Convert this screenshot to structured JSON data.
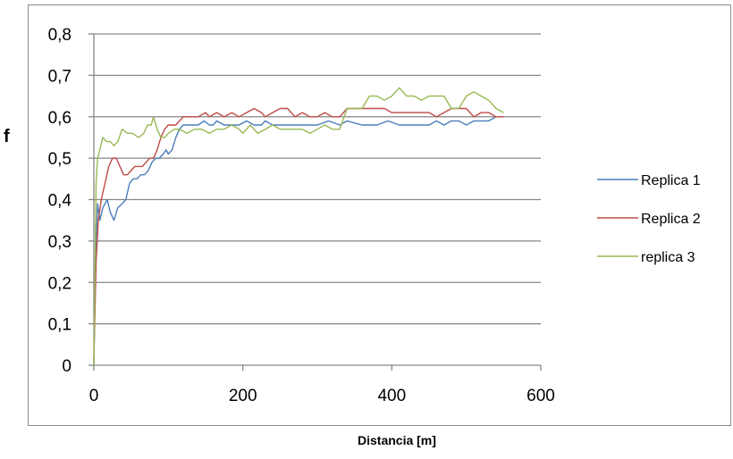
{
  "chart_data": {
    "type": "line",
    "title": "",
    "xlabel": "Distancia [m]",
    "ylabel": "f",
    "xlim": [
      0,
      600
    ],
    "ylim": [
      0,
      0.8
    ],
    "xticks": [
      0,
      200,
      400,
      600
    ],
    "xtick_labels": [
      "0",
      "200",
      "400",
      "600"
    ],
    "yticks": [
      0,
      0.1,
      0.2,
      0.3,
      0.4,
      0.5,
      0.6,
      0.7,
      0.8
    ],
    "ytick_labels": [
      "0",
      "0,1",
      "0,2",
      "0,3",
      "0,4",
      "0,5",
      "0,6",
      "0,7",
      "0,8"
    ],
    "grid": "horizontal",
    "legend_position": "right",
    "series": [
      {
        "name": "Replica 1",
        "color": "#4a7ebb",
        "points": [
          [
            0,
            0
          ],
          [
            2,
            0.25
          ],
          [
            5,
            0.39
          ],
          [
            8,
            0.35
          ],
          [
            12,
            0.38
          ],
          [
            18,
            0.4
          ],
          [
            22,
            0.37
          ],
          [
            27,
            0.35
          ],
          [
            32,
            0.38
          ],
          [
            38,
            0.39
          ],
          [
            43,
            0.4
          ],
          [
            48,
            0.44
          ],
          [
            53,
            0.45
          ],
          [
            58,
            0.45
          ],
          [
            63,
            0.46
          ],
          [
            68,
            0.46
          ],
          [
            73,
            0.47
          ],
          [
            78,
            0.49
          ],
          [
            83,
            0.5
          ],
          [
            88,
            0.5
          ],
          [
            93,
            0.51
          ],
          [
            97,
            0.52
          ],
          [
            100,
            0.51
          ],
          [
            105,
            0.52
          ],
          [
            110,
            0.55
          ],
          [
            115,
            0.57
          ],
          [
            120,
            0.58
          ],
          [
            130,
            0.58
          ],
          [
            140,
            0.58
          ],
          [
            148,
            0.59
          ],
          [
            155,
            0.58
          ],
          [
            160,
            0.58
          ],
          [
            165,
            0.59
          ],
          [
            175,
            0.58
          ],
          [
            185,
            0.58
          ],
          [
            195,
            0.58
          ],
          [
            205,
            0.59
          ],
          [
            215,
            0.58
          ],
          [
            225,
            0.58
          ],
          [
            230,
            0.59
          ],
          [
            240,
            0.58
          ],
          [
            260,
            0.58
          ],
          [
            280,
            0.58
          ],
          [
            300,
            0.58
          ],
          [
            315,
            0.59
          ],
          [
            330,
            0.58
          ],
          [
            340,
            0.59
          ],
          [
            360,
            0.58
          ],
          [
            380,
            0.58
          ],
          [
            395,
            0.59
          ],
          [
            410,
            0.58
          ],
          [
            430,
            0.58
          ],
          [
            450,
            0.58
          ],
          [
            460,
            0.59
          ],
          [
            470,
            0.58
          ],
          [
            480,
            0.59
          ],
          [
            490,
            0.59
          ],
          [
            500,
            0.58
          ],
          [
            510,
            0.59
          ],
          [
            520,
            0.59
          ],
          [
            530,
            0.59
          ],
          [
            540,
            0.6
          ],
          [
            550,
            0.6
          ]
        ]
      },
      {
        "name": "Replica 2",
        "color": "#be4b48",
        "points": [
          [
            0,
            0.01
          ],
          [
            3,
            0.25
          ],
          [
            6,
            0.35
          ],
          [
            10,
            0.4
          ],
          [
            15,
            0.44
          ],
          [
            20,
            0.48
          ],
          [
            25,
            0.5
          ],
          [
            30,
            0.5
          ],
          [
            35,
            0.48
          ],
          [
            40,
            0.46
          ],
          [
            45,
            0.46
          ],
          [
            50,
            0.47
          ],
          [
            55,
            0.48
          ],
          [
            60,
            0.48
          ],
          [
            65,
            0.48
          ],
          [
            70,
            0.49
          ],
          [
            75,
            0.5
          ],
          [
            80,
            0.5
          ],
          [
            85,
            0.52
          ],
          [
            90,
            0.55
          ],
          [
            95,
            0.57
          ],
          [
            100,
            0.58
          ],
          [
            110,
            0.58
          ],
          [
            115,
            0.59
          ],
          [
            120,
            0.6
          ],
          [
            130,
            0.6
          ],
          [
            140,
            0.6
          ],
          [
            150,
            0.61
          ],
          [
            155,
            0.6
          ],
          [
            165,
            0.61
          ],
          [
            175,
            0.6
          ],
          [
            185,
            0.61
          ],
          [
            195,
            0.6
          ],
          [
            205,
            0.61
          ],
          [
            215,
            0.62
          ],
          [
            225,
            0.61
          ],
          [
            230,
            0.6
          ],
          [
            240,
            0.61
          ],
          [
            250,
            0.62
          ],
          [
            260,
            0.62
          ],
          [
            270,
            0.6
          ],
          [
            280,
            0.61
          ],
          [
            290,
            0.6
          ],
          [
            300,
            0.6
          ],
          [
            310,
            0.61
          ],
          [
            320,
            0.6
          ],
          [
            330,
            0.6
          ],
          [
            340,
            0.62
          ],
          [
            350,
            0.62
          ],
          [
            360,
            0.62
          ],
          [
            370,
            0.62
          ],
          [
            380,
            0.62
          ],
          [
            390,
            0.62
          ],
          [
            400,
            0.61
          ],
          [
            410,
            0.61
          ],
          [
            420,
            0.61
          ],
          [
            430,
            0.61
          ],
          [
            440,
            0.61
          ],
          [
            450,
            0.61
          ],
          [
            460,
            0.6
          ],
          [
            470,
            0.61
          ],
          [
            480,
            0.62
          ],
          [
            490,
            0.62
          ],
          [
            500,
            0.62
          ],
          [
            510,
            0.6
          ],
          [
            520,
            0.61
          ],
          [
            530,
            0.61
          ],
          [
            540,
            0.6
          ],
          [
            550,
            0.6
          ]
        ]
      },
      {
        "name": "replica 3",
        "color": "#98b954",
        "points": [
          [
            0,
            0.0
          ],
          [
            3,
            0.44
          ],
          [
            5,
            0.5
          ],
          [
            8,
            0.52
          ],
          [
            12,
            0.55
          ],
          [
            17,
            0.54
          ],
          [
            22,
            0.54
          ],
          [
            27,
            0.53
          ],
          [
            32,
            0.54
          ],
          [
            38,
            0.57
          ],
          [
            45,
            0.56
          ],
          [
            52,
            0.56
          ],
          [
            60,
            0.55
          ],
          [
            67,
            0.56
          ],
          [
            72,
            0.58
          ],
          [
            77,
            0.58
          ],
          [
            80,
            0.6
          ],
          [
            85,
            0.57
          ],
          [
            90,
            0.55
          ],
          [
            95,
            0.55
          ],
          [
            100,
            0.56
          ],
          [
            108,
            0.57
          ],
          [
            115,
            0.57
          ],
          [
            125,
            0.56
          ],
          [
            135,
            0.57
          ],
          [
            145,
            0.57
          ],
          [
            155,
            0.56
          ],
          [
            165,
            0.57
          ],
          [
            175,
            0.57
          ],
          [
            185,
            0.58
          ],
          [
            195,
            0.57
          ],
          [
            200,
            0.56
          ],
          [
            210,
            0.58
          ],
          [
            220,
            0.56
          ],
          [
            230,
            0.57
          ],
          [
            240,
            0.58
          ],
          [
            250,
            0.57
          ],
          [
            260,
            0.57
          ],
          [
            270,
            0.57
          ],
          [
            280,
            0.57
          ],
          [
            290,
            0.56
          ],
          [
            300,
            0.57
          ],
          [
            310,
            0.58
          ],
          [
            320,
            0.57
          ],
          [
            330,
            0.57
          ],
          [
            340,
            0.62
          ],
          [
            350,
            0.62
          ],
          [
            360,
            0.62
          ],
          [
            370,
            0.65
          ],
          [
            380,
            0.65
          ],
          [
            390,
            0.64
          ],
          [
            400,
            0.65
          ],
          [
            410,
            0.67
          ],
          [
            420,
            0.65
          ],
          [
            430,
            0.65
          ],
          [
            440,
            0.64
          ],
          [
            450,
            0.65
          ],
          [
            460,
            0.65
          ],
          [
            470,
            0.65
          ],
          [
            480,
            0.62
          ],
          [
            490,
            0.62
          ],
          [
            500,
            0.65
          ],
          [
            510,
            0.66
          ],
          [
            520,
            0.65
          ],
          [
            530,
            0.64
          ],
          [
            540,
            0.62
          ],
          [
            550,
            0.61
          ]
        ]
      }
    ]
  }
}
